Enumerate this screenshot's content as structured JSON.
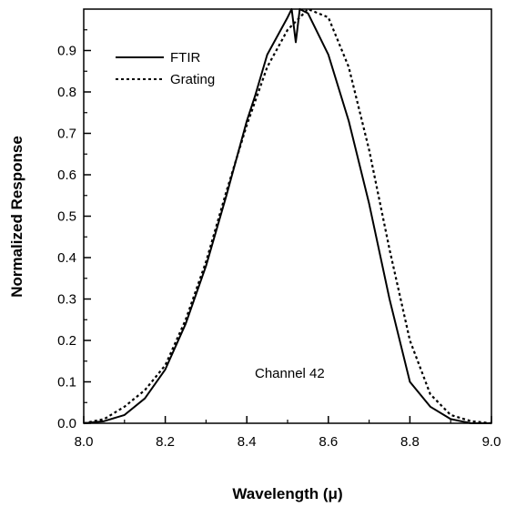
{
  "chart_data": {
    "type": "line",
    "title": "",
    "xlabel": "Wavelength (μ)",
    "ylabel": "Normalized Response",
    "xlim": [
      8.0,
      9.0
    ],
    "ylim": [
      0.0,
      1.0
    ],
    "xticks": [
      "8.0",
      "8.2",
      "8.4",
      "8.6",
      "8.8",
      "9.0"
    ],
    "yticks": [
      "0.0",
      "0.1",
      "0.2",
      "0.3",
      "0.4",
      "0.5",
      "0.6",
      "0.7",
      "0.8",
      "0.9"
    ],
    "grid": false,
    "legend_position": "top-left",
    "annotation": "Channel 42",
    "series": [
      {
        "name": "FTIR",
        "style": "solid",
        "x": [
          8.0,
          8.05,
          8.1,
          8.15,
          8.2,
          8.25,
          8.3,
          8.35,
          8.4,
          8.42,
          8.45,
          8.5,
          8.51,
          8.52,
          8.53,
          8.55,
          8.6,
          8.65,
          8.7,
          8.75,
          8.8,
          8.85,
          8.9,
          8.95,
          9.0
        ],
        "y": [
          0.0,
          0.005,
          0.02,
          0.06,
          0.13,
          0.24,
          0.38,
          0.55,
          0.73,
          0.79,
          0.89,
          0.98,
          1.0,
          0.92,
          1.0,
          0.99,
          0.89,
          0.73,
          0.53,
          0.3,
          0.1,
          0.04,
          0.01,
          0.0,
          0.0
        ]
      },
      {
        "name": "Grating",
        "style": "dotted",
        "x": [
          8.0,
          8.05,
          8.1,
          8.15,
          8.2,
          8.25,
          8.3,
          8.35,
          8.4,
          8.45,
          8.5,
          8.55,
          8.6,
          8.65,
          8.7,
          8.75,
          8.8,
          8.85,
          8.9,
          8.95,
          9.0
        ],
        "y": [
          0.0,
          0.01,
          0.04,
          0.08,
          0.14,
          0.25,
          0.39,
          0.56,
          0.72,
          0.86,
          0.95,
          1.0,
          0.98,
          0.86,
          0.66,
          0.42,
          0.2,
          0.07,
          0.02,
          0.005,
          0.0
        ]
      }
    ]
  }
}
